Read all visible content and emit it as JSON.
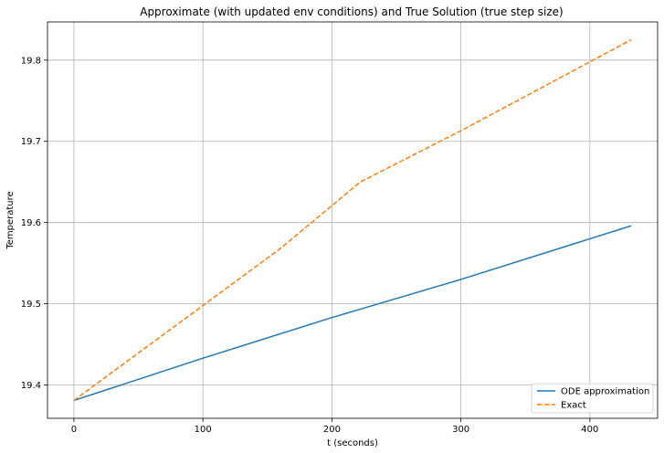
{
  "chart_data": {
    "type": "line",
    "title": "Approximate (with updated env conditions) and True Solution (true step size)",
    "xlabel": "t (seconds)",
    "ylabel": "Temperature",
    "xlim": [
      -20.5,
      452.5
    ],
    "ylim": [
      19.359,
      19.847
    ],
    "xticks": [
      0,
      100,
      200,
      300,
      400
    ],
    "xtick_labels": [
      "0",
      "100",
      "200",
      "300",
      "400"
    ],
    "yticks": [
      19.4,
      19.5,
      19.6,
      19.7,
      19.8
    ],
    "ytick_labels": [
      "19.4",
      "19.5",
      "19.6",
      "19.7",
      "19.8"
    ],
    "grid": true,
    "legend_position": "lower-right",
    "series": [
      {
        "name": "ODE approximation",
        "color": "#1f77b4",
        "style": "solid",
        "x": [
          0,
          100,
          200,
          300,
          432
        ],
        "y": [
          19.381,
          19.433,
          19.483,
          19.53,
          19.596
        ]
      },
      {
        "name": "Exact",
        "color": "#ff7f0e",
        "style": "dashed",
        "x": [
          0,
          160,
          222,
          300,
          432
        ],
        "y": [
          19.381,
          19.568,
          19.65,
          19.713,
          19.825
        ]
      }
    ]
  }
}
